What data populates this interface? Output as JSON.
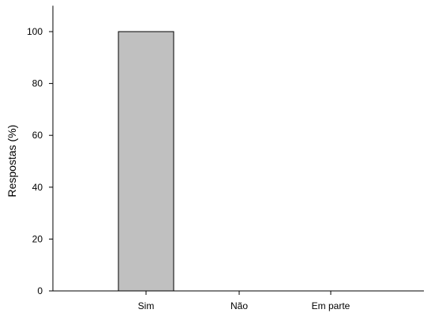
{
  "chart_data": {
    "type": "bar",
    "categories": [
      "Sim",
      "Não",
      "Em parte"
    ],
    "values": [
      100,
      0,
      0
    ],
    "xlabel": "",
    "ylabel": "Respostas (%)",
    "ylim": [
      0,
      110
    ],
    "yticks": [
      0,
      20,
      40,
      60,
      80,
      100
    ],
    "grid": false,
    "legend": "none",
    "colors": {
      "bar_fill": "#c0c0c0",
      "bar_stroke": "#000000",
      "axis": "#000000"
    }
  }
}
